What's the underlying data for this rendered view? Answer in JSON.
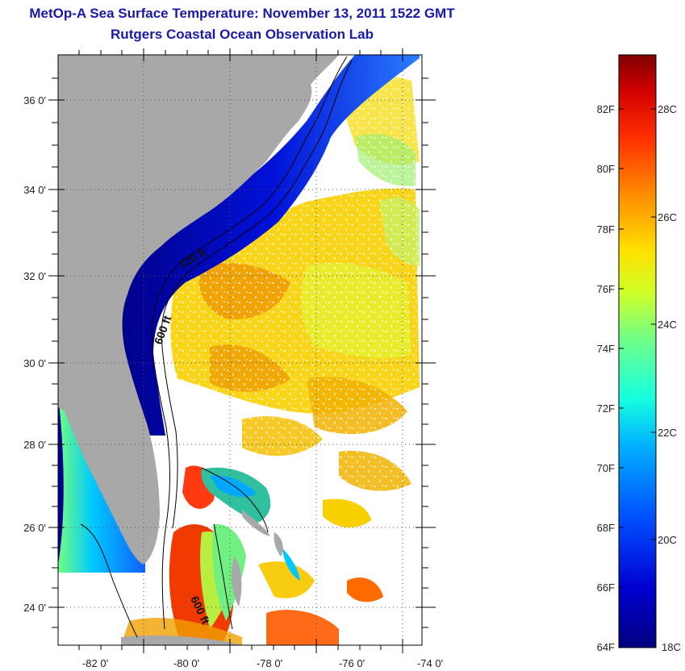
{
  "title": {
    "line1": "MetOp-A Sea Surface Temperature:  November 13, 2011 1522 GMT",
    "line2": "Rutgers Coastal Ocean Observation Lab"
  },
  "map": {
    "lon_ticks": [
      "-82 0'",
      "-80 0'",
      "-78 0'",
      "-76 0'",
      "-74 0'"
    ],
    "lat_ticks": [
      "36 0'",
      "34 0'",
      "32 0'",
      "30 0'",
      "28 0'",
      "26 0'",
      "24 0'"
    ],
    "contours": [
      "120 ft",
      "600 ft",
      "600 ft"
    ],
    "colors": {
      "land": "#a8a8a8",
      "no_data": "#ffffff",
      "frame": "#000000"
    }
  },
  "colorbar": {
    "fahrenheit": [
      "82F",
      "80F",
      "78F",
      "76F",
      "74F",
      "72F",
      "70F",
      "68F",
      "66F",
      "64F"
    ],
    "celsius": [
      "28C",
      "26C",
      "24C",
      "22C",
      "20C",
      "18C"
    ],
    "scale_colors": [
      "#00007f",
      "#0000d0",
      "#0050ff",
      "#00b0ff",
      "#15ffe0",
      "#70ff88",
      "#d0ff25",
      "#ffe000",
      "#ff9000",
      "#ff3000",
      "#d00000",
      "#7f0000"
    ]
  }
}
